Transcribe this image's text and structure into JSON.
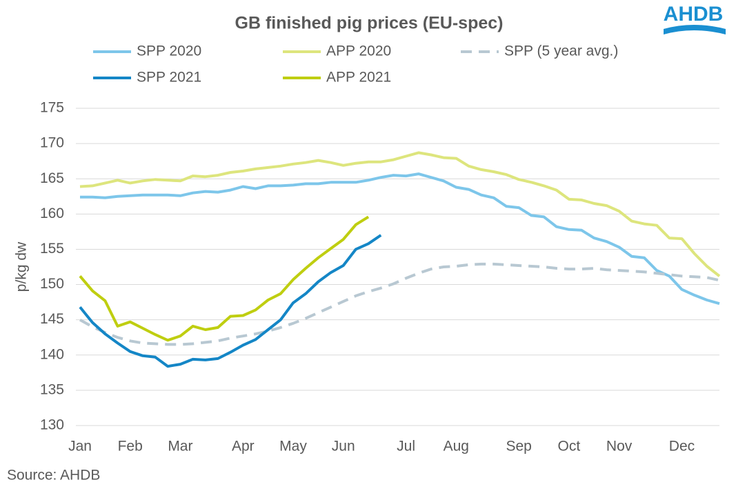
{
  "chart_data": {
    "type": "line",
    "title": "GB finished pig prices (EU-spec)",
    "logo": "AHDB",
    "source": "Source: AHDB",
    "y_label": "p/kg dw",
    "categories": [
      "Jan",
      null,
      null,
      null,
      "Feb",
      null,
      null,
      null,
      "Mar",
      null,
      null,
      null,
      null,
      "Apr",
      null,
      null,
      null,
      "May",
      null,
      null,
      null,
      "Jun",
      null,
      null,
      null,
      null,
      "Jul",
      null,
      null,
      null,
      "Aug",
      null,
      null,
      null,
      null,
      "Sep",
      null,
      null,
      null,
      "Oct",
      null,
      null,
      null,
      "Nov",
      null,
      null,
      null,
      null,
      "Dec",
      null,
      null,
      null
    ],
    "ylim": [
      130,
      175
    ],
    "yticks": [
      130,
      135,
      140,
      145,
      150,
      155,
      160,
      165,
      170,
      175
    ],
    "grid": true,
    "series": [
      {
        "name": "SPP 2020",
        "color": "#7dc6ea",
        "dashed": false,
        "values": [
          162.4,
          162.4,
          162.3,
          162.5,
          162.6,
          162.7,
          162.7,
          162.7,
          162.6,
          163.0,
          163.2,
          163.1,
          163.4,
          163.9,
          163.6,
          164.0,
          164.0,
          164.1,
          164.3,
          164.3,
          164.5,
          164.5,
          164.5,
          164.8,
          165.2,
          165.5,
          165.4,
          165.7,
          165.2,
          164.7,
          163.8,
          163.5,
          162.7,
          162.3,
          161.1,
          160.9,
          159.8,
          159.6,
          158.2,
          157.8,
          157.7,
          156.6,
          156.1,
          155.3,
          154.0,
          153.8,
          152.0,
          151.2,
          149.3,
          148.5,
          147.8,
          147.3
        ]
      },
      {
        "name": "APP 2020",
        "color": "#dde57d",
        "dashed": false,
        "values": [
          163.9,
          164.0,
          164.4,
          164.8,
          164.4,
          164.7,
          164.9,
          164.8,
          164.7,
          165.4,
          165.3,
          165.5,
          165.9,
          166.1,
          166.4,
          166.6,
          166.8,
          167.1,
          167.3,
          167.6,
          167.3,
          166.9,
          167.2,
          167.4,
          167.4,
          167.7,
          168.2,
          168.7,
          168.4,
          168.0,
          167.9,
          166.8,
          166.3,
          166.0,
          165.6,
          164.9,
          164.5,
          164.0,
          163.4,
          162.1,
          162.0,
          161.5,
          161.2,
          160.4,
          159.0,
          158.6,
          158.4,
          156.6,
          156.5,
          154.4,
          152.6,
          151.2
        ]
      },
      {
        "name": "SPP (5 year avg.)",
        "color": "#b8c8d2",
        "dashed": true,
        "values": [
          145.0,
          144.0,
          143.2,
          142.5,
          142.0,
          141.7,
          141.6,
          141.5,
          141.5,
          141.6,
          141.8,
          142.0,
          142.4,
          142.7,
          143.0,
          143.4,
          143.9,
          144.5,
          145.2,
          146.0,
          146.8,
          147.6,
          148.4,
          149.0,
          149.5,
          150.1,
          150.9,
          151.6,
          152.2,
          152.5,
          152.6,
          152.8,
          152.9,
          152.9,
          152.8,
          152.7,
          152.6,
          152.5,
          152.3,
          152.2,
          152.2,
          152.3,
          152.1,
          152.0,
          151.9,
          151.8,
          151.6,
          151.4,
          151.2,
          151.1,
          151.0,
          150.6
        ]
      },
      {
        "name": "SPP 2021",
        "color": "#1486c6",
        "dashed": false,
        "values": [
          146.8,
          144.6,
          143.0,
          141.7,
          140.5,
          139.9,
          139.7,
          138.4,
          138.7,
          139.4,
          139.3,
          139.5,
          140.4,
          141.4,
          142.2,
          143.6,
          145.0,
          147.4,
          148.7,
          150.4,
          151.7,
          152.7,
          155.0,
          155.8,
          157.0,
          null,
          null,
          null,
          null,
          null,
          null,
          null,
          null,
          null,
          null,
          null,
          null,
          null,
          null,
          null,
          null,
          null,
          null,
          null,
          null,
          null,
          null,
          null,
          null,
          null,
          null,
          null
        ]
      },
      {
        "name": "APP 2021",
        "color": "#bfce10",
        "dashed": false,
        "values": [
          151.2,
          149.1,
          147.7,
          144.1,
          144.7,
          143.8,
          142.9,
          142.1,
          142.7,
          144.1,
          143.6,
          143.9,
          145.5,
          145.6,
          146.4,
          147.8,
          148.7,
          150.7,
          152.3,
          153.8,
          155.1,
          156.4,
          158.5,
          159.6,
          null,
          null,
          null,
          null,
          null,
          null,
          null,
          null,
          null,
          null,
          null,
          null,
          null,
          null,
          null,
          null,
          null,
          null,
          null,
          null,
          null,
          null,
          null,
          null,
          null,
          null,
          null,
          null
        ]
      }
    ]
  }
}
